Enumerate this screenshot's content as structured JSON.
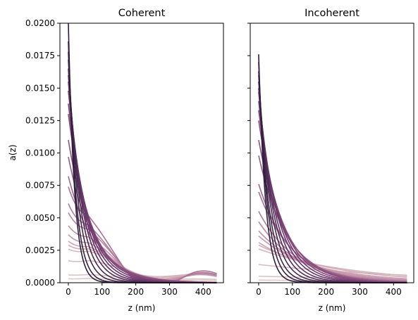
{
  "chart_data": [
    {
      "type": "line",
      "title": "Coherent",
      "xlabel": "z (nm)",
      "ylabel": "a(z)",
      "xlim": [
        -25,
        460
      ],
      "ylim": [
        0,
        0.02
      ],
      "xticks": [
        "0",
        "100",
        "200",
        "300",
        "400"
      ],
      "yticks": [
        "0.0000",
        "0.0025",
        "0.0050",
        "0.0075",
        "0.0100",
        "0.0125",
        "0.0150",
        "0.0175",
        "0.0200"
      ],
      "grid": false,
      "legend": "none",
      "series": [
        {
          "color": "#2d1e3e",
          "peak": 0.02,
          "decay_nm": 18
        },
        {
          "color": "#36223f",
          "peak": 0.0186,
          "decay_nm": 22
        },
        {
          "color": "#3f2546",
          "peak": 0.0178,
          "decay_nm": 28
        },
        {
          "color": "#48294f",
          "peak": 0.0172,
          "decay_nm": 34
        },
        {
          "color": "#532d58",
          "peak": 0.0165,
          "decay_nm": 40
        },
        {
          "color": "#5e3162",
          "peak": 0.016,
          "decay_nm": 45
        },
        {
          "color": "#68376b",
          "peak": 0.0155,
          "decay_nm": 50
        },
        {
          "color": "#723d71",
          "peak": 0.0148,
          "decay_nm": 55
        },
        {
          "color": "#7d4477",
          "peak": 0.0138,
          "decay_nm": 60
        },
        {
          "color": "#864c7c",
          "peak": 0.013,
          "decay_nm": 64
        },
        {
          "color": "#905483",
          "peak": 0.011,
          "decay_nm": 70
        },
        {
          "color": "#985d89",
          "peak": 0.0097,
          "decay_nm": 75
        },
        {
          "color": "#a1678f",
          "peak": 0.0082,
          "decay_nm": 80
        },
        {
          "color": "#a97196",
          "peak": 0.0074,
          "decay_nm": 90
        },
        {
          "color": "#b17b9c",
          "peak": 0.0061,
          "decay_nm": 100
        },
        {
          "color": "#b985a2",
          "peak": 0.0054,
          "decay_nm": 110
        },
        {
          "color": "#c08fa8",
          "peak": 0.0044,
          "decay_nm": 125
        },
        {
          "color": "#c699ad",
          "peak": 0.0037,
          "decay_nm": 140
        },
        {
          "color": "#cca3b2",
          "peak": 0.0032,
          "decay_nm": 160
        },
        {
          "color": "#d1acb7",
          "peak": 0.0029,
          "decay_nm": 180
        },
        {
          "color": "#d6b4bb",
          "peak": 0.0026,
          "decay_nm": 210
        },
        {
          "color": "#dabbbf",
          "peak": 0.0017,
          "decay_nm": 300
        },
        {
          "color": "#dec2c3",
          "peak": 0.0006,
          "decay_nm": 400
        },
        {
          "color": "#e1c8c6",
          "peak": 0.0003,
          "decay_nm": 600
        }
      ]
    },
    {
      "type": "line",
      "title": "Incoherent",
      "xlabel": "z (nm)",
      "ylabel": "",
      "xlim": [
        -25,
        460
      ],
      "ylim": [
        0,
        0.02
      ],
      "xticks": [
        "0",
        "100",
        "200",
        "300",
        "400"
      ],
      "yticks": [],
      "grid": false,
      "legend": "none",
      "series": [
        {
          "color": "#2d1e3e",
          "peak": 0.0176,
          "decay_nm": 20
        },
        {
          "color": "#36223f",
          "peak": 0.017,
          "decay_nm": 25
        },
        {
          "color": "#3f2546",
          "peak": 0.0163,
          "decay_nm": 30
        },
        {
          "color": "#48294f",
          "peak": 0.016,
          "decay_nm": 36
        },
        {
          "color": "#532d58",
          "peak": 0.0155,
          "decay_nm": 42
        },
        {
          "color": "#5e3162",
          "peak": 0.015,
          "decay_nm": 48
        },
        {
          "color": "#68376b",
          "peak": 0.0147,
          "decay_nm": 54
        },
        {
          "color": "#723d71",
          "peak": 0.014,
          "decay_nm": 60
        },
        {
          "color": "#7d4477",
          "peak": 0.0133,
          "decay_nm": 66
        },
        {
          "color": "#864c7c",
          "peak": 0.0125,
          "decay_nm": 72
        },
        {
          "color": "#905483",
          "peak": 0.011,
          "decay_nm": 78
        },
        {
          "color": "#985d89",
          "peak": 0.0098,
          "decay_nm": 85
        },
        {
          "color": "#a1678f",
          "peak": 0.0076,
          "decay_nm": 92
        },
        {
          "color": "#a97196",
          "peak": 0.007,
          "decay_nm": 100
        },
        {
          "color": "#b17b9c",
          "peak": 0.0055,
          "decay_nm": 110
        },
        {
          "color": "#b985a2",
          "peak": 0.0047,
          "decay_nm": 120
        },
        {
          "color": "#c08fa8",
          "peak": 0.004,
          "decay_nm": 140
        },
        {
          "color": "#c699ad",
          "peak": 0.0036,
          "decay_nm": 160
        },
        {
          "color": "#cca3b2",
          "peak": 0.0031,
          "decay_nm": 190
        },
        {
          "color": "#d1acb7",
          "peak": 0.0029,
          "decay_nm": 230
        },
        {
          "color": "#d6b4bb",
          "peak": 0.0026,
          "decay_nm": 280
        },
        {
          "color": "#dabbbf",
          "peak": 0.0014,
          "decay_nm": 500
        },
        {
          "color": "#dec2c3",
          "peak": 0.0005,
          "decay_nm": 800
        },
        {
          "color": "#e1c8c6",
          "peak": 0.0002,
          "decay_nm": 1200
        }
      ]
    }
  ]
}
